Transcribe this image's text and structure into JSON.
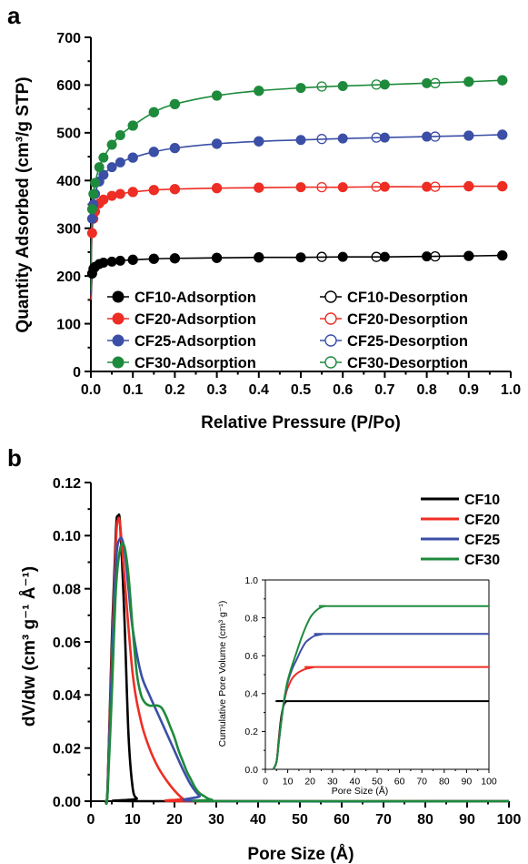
{
  "panels": [
    {
      "label": "a"
    },
    {
      "label": "b"
    }
  ],
  "chart_data": [
    {
      "id": "a",
      "type": "scatter",
      "xlabel": "Relative Pressure (P/Po)",
      "ylabel": "Quantity Adsorbed (cm³/g STP)",
      "xlim": [
        0,
        1.0
      ],
      "ylim": [
        0,
        700
      ],
      "xticks": [
        0.0,
        0.1,
        0.2,
        0.3,
        0.4,
        0.5,
        0.6,
        0.7,
        0.8,
        0.9,
        1.0
      ],
      "yticks": [
        0,
        100,
        200,
        300,
        400,
        500,
        600,
        700
      ],
      "legend_position": "bottom-right",
      "series": [
        {
          "name": "CF10-Adsorption",
          "color": "#000000",
          "marker": "filled",
          "x": [
            0.0005,
            0.001,
            0.003,
            0.006,
            0.01,
            0.02,
            0.03,
            0.05,
            0.07,
            0.1,
            0.15,
            0.2,
            0.3,
            0.4,
            0.5,
            0.6,
            0.7,
            0.8,
            0.9,
            0.98
          ],
          "y": [
            120,
            165,
            205,
            215,
            219,
            225,
            228,
            230,
            232,
            234,
            236,
            237,
            238,
            239,
            239,
            240,
            240,
            241,
            242,
            243
          ]
        },
        {
          "name": "CF10-Desorption",
          "color": "#000000",
          "marker": "open",
          "x": [
            0.98,
            0.9,
            0.82,
            0.68,
            0.55,
            0.4,
            0.3,
            0.2,
            0.15,
            0.1
          ],
          "y": [
            243,
            242,
            241,
            240,
            240,
            239,
            238,
            237,
            236,
            234
          ]
        },
        {
          "name": "CF20-Adsorption",
          "color": "#ee2d24",
          "marker": "filled",
          "x": [
            0.0005,
            0.001,
            0.003,
            0.006,
            0.01,
            0.02,
            0.03,
            0.05,
            0.07,
            0.1,
            0.15,
            0.2,
            0.3,
            0.4,
            0.5,
            0.6,
            0.7,
            0.8,
            0.9,
            0.98
          ],
          "y": [
            150,
            230,
            290,
            320,
            335,
            352,
            360,
            368,
            372,
            376,
            380,
            382,
            384,
            385,
            386,
            386,
            387,
            387,
            388,
            388
          ]
        },
        {
          "name": "CF20-Desorption",
          "color": "#ee2d24",
          "marker": "open",
          "x": [
            0.98,
            0.9,
            0.82,
            0.68,
            0.55,
            0.4,
            0.3,
            0.2,
            0.15,
            0.1
          ],
          "y": [
            388,
            388,
            387,
            387,
            386,
            385,
            384,
            382,
            380,
            376
          ]
        },
        {
          "name": "CF25-Adsorption",
          "color": "#3b4fa6",
          "marker": "filled",
          "x": [
            0.0005,
            0.001,
            0.003,
            0.006,
            0.01,
            0.02,
            0.03,
            0.05,
            0.07,
            0.1,
            0.15,
            0.2,
            0.3,
            0.4,
            0.5,
            0.6,
            0.7,
            0.8,
            0.9,
            0.98
          ],
          "y": [
            160,
            250,
            320,
            350,
            372,
            398,
            412,
            428,
            438,
            448,
            460,
            468,
            477,
            482,
            485,
            488,
            490,
            492,
            494,
            496
          ]
        },
        {
          "name": "CF25-Desorption",
          "color": "#3b4fa6",
          "marker": "open",
          "x": [
            0.98,
            0.9,
            0.82,
            0.68,
            0.55,
            0.4,
            0.3,
            0.2,
            0.15,
            0.1
          ],
          "y": [
            496,
            494,
            492,
            490,
            487,
            482,
            477,
            468,
            460,
            448
          ]
        },
        {
          "name": "CF30-Adsorption",
          "color": "#1e8a3c",
          "marker": "filled",
          "x": [
            0.0005,
            0.001,
            0.003,
            0.006,
            0.01,
            0.02,
            0.03,
            0.05,
            0.07,
            0.1,
            0.15,
            0.2,
            0.3,
            0.4,
            0.5,
            0.6,
            0.7,
            0.8,
            0.9,
            0.98
          ],
          "y": [
            170,
            260,
            340,
            372,
            395,
            428,
            448,
            475,
            495,
            515,
            543,
            560,
            578,
            588,
            594,
            598,
            601,
            604,
            607,
            610
          ]
        },
        {
          "name": "CF30-Desorption",
          "color": "#1e8a3c",
          "marker": "open",
          "x": [
            0.98,
            0.9,
            0.82,
            0.68,
            0.55,
            0.4,
            0.3,
            0.2,
            0.15,
            0.1
          ],
          "y": [
            610,
            607,
            604,
            601,
            597,
            588,
            578,
            560,
            543,
            515
          ]
        }
      ]
    },
    {
      "id": "b",
      "type": "line",
      "xlabel": "Pore Size (Å)",
      "ylabel": "dV/dw (cm³ g⁻¹ Å⁻¹)",
      "xlim": [
        0,
        100
      ],
      "ylim": [
        0,
        0.12
      ],
      "xticks": [
        0,
        10,
        20,
        30,
        40,
        50,
        60,
        70,
        80,
        90,
        100
      ],
      "yticks": [
        0.0,
        0.02,
        0.04,
        0.06,
        0.08,
        0.1,
        0.12
      ],
      "legend_position": "top-right",
      "series": [
        {
          "name": "CF10",
          "color": "#000000",
          "x": [
            3.5,
            4,
            5,
            6,
            6.5,
            7,
            8,
            9,
            10,
            11,
            12,
            100
          ],
          "y": [
            0,
            0.005,
            0.06,
            0.102,
            0.107,
            0.104,
            0.07,
            0.025,
            0.005,
            0.001,
            0,
            0
          ]
        },
        {
          "name": "CF20",
          "color": "#ee2d24",
          "x": [
            3.5,
            4,
            5,
            6,
            6.5,
            7,
            8,
            10,
            12,
            14,
            16,
            18,
            20,
            22,
            24,
            100
          ],
          "y": [
            0,
            0.005,
            0.055,
            0.098,
            0.106,
            0.104,
            0.085,
            0.048,
            0.03,
            0.02,
            0.013,
            0.008,
            0.004,
            0.001,
            0,
            0
          ]
        },
        {
          "name": "CF25",
          "color": "#3b4fa6",
          "x": [
            3.5,
            4,
            5,
            6,
            7,
            8,
            9,
            10,
            12,
            14,
            16,
            18,
            20,
            22,
            24,
            26,
            28,
            100
          ],
          "y": [
            0,
            0.004,
            0.05,
            0.09,
            0.099,
            0.095,
            0.08,
            0.065,
            0.048,
            0.04,
            0.033,
            0.026,
            0.019,
            0.012,
            0.006,
            0.002,
            0,
            0
          ]
        },
        {
          "name": "CF30",
          "color": "#1e8a3c",
          "x": [
            3.5,
            4,
            5,
            6,
            7,
            8,
            9,
            10,
            11,
            12,
            13,
            14,
            15,
            16,
            17,
            18,
            19,
            20,
            21,
            22,
            23,
            24,
            25,
            26,
            27,
            28,
            29,
            30,
            100
          ],
          "y": [
            0,
            0.003,
            0.04,
            0.08,
            0.095,
            0.096,
            0.085,
            0.065,
            0.048,
            0.04,
            0.037,
            0.036,
            0.036,
            0.036,
            0.035,
            0.032,
            0.028,
            0.024,
            0.019,
            0.015,
            0.011,
            0.008,
            0.005,
            0.003,
            0.002,
            0.001,
            0.0005,
            0,
            0
          ]
        }
      ],
      "inset": {
        "type": "line",
        "xlabel": "Pore Size (Å)",
        "ylabel": "Cumulative Pore Volume (cm³ g⁻¹)",
        "xlim": [
          0,
          100
        ],
        "ylim": [
          0,
          1.0
        ],
        "xticks": [
          0,
          10,
          20,
          30,
          40,
          50,
          60,
          70,
          80,
          90,
          100
        ],
        "yticks": [
          0.0,
          0.2,
          0.4,
          0.6,
          0.8,
          1.0
        ],
        "series": [
          {
            "name": "CF10",
            "color": "#000000",
            "x": [
              3.5,
              5,
              6,
              7,
              8,
              9,
              10,
              12,
              100
            ],
            "y": [
              0,
              0.04,
              0.16,
              0.27,
              0.33,
              0.355,
              0.36,
              0.36,
              0.36
            ]
          },
          {
            "name": "CF20",
            "color": "#ee2d24",
            "x": [
              3.5,
              5,
              6,
              7,
              8,
              9,
              10,
              12,
              14,
              16,
              18,
              20,
              22,
              24,
              100
            ],
            "y": [
              0,
              0.04,
              0.15,
              0.25,
              0.33,
              0.39,
              0.43,
              0.48,
              0.505,
              0.52,
              0.53,
              0.535,
              0.54,
              0.54,
              0.54
            ]
          },
          {
            "name": "CF25",
            "color": "#3b4fa6",
            "x": [
              3.5,
              5,
              6,
              7,
              8,
              9,
              10,
              12,
              14,
              16,
              18,
              20,
              22,
              24,
              26,
              28,
              100
            ],
            "y": [
              0,
              0.04,
              0.14,
              0.24,
              0.33,
              0.4,
              0.46,
              0.53,
              0.58,
              0.63,
              0.67,
              0.69,
              0.705,
              0.71,
              0.715,
              0.715,
              0.715
            ]
          },
          {
            "name": "CF30",
            "color": "#1e8a3c",
            "x": [
              3.5,
              5,
              6,
              7,
              8,
              9,
              10,
              12,
              14,
              16,
              18,
              20,
              22,
              24,
              26,
              28,
              30,
              100
            ],
            "y": [
              0,
              0.04,
              0.14,
              0.24,
              0.34,
              0.41,
              0.47,
              0.55,
              0.62,
              0.69,
              0.75,
              0.8,
              0.83,
              0.85,
              0.86,
              0.862,
              0.862,
              0.862
            ]
          }
        ]
      }
    }
  ]
}
